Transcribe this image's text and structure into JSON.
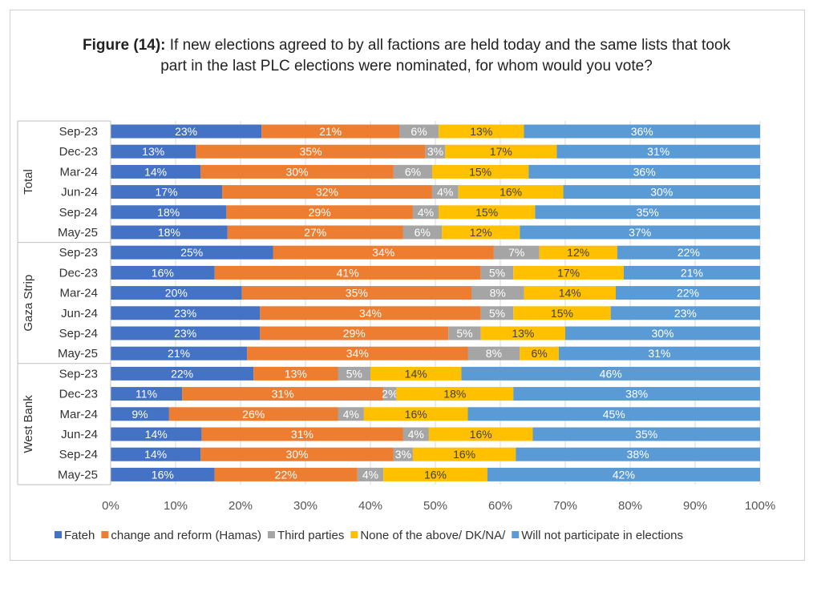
{
  "chart_data": {
    "type": "bar",
    "orientation": "horizontal",
    "stacked": "percent",
    "title_bold": "Figure (14):",
    "title": "If new elections agreed to by all factions are held today and the same lists that took part in the last PLC elections were nominated, for whom would you vote?",
    "xlabel": "",
    "ylabel": "",
    "xlim": [
      0,
      100
    ],
    "xticks": [
      "0%",
      "10%",
      "20%",
      "30%",
      "40%",
      "50%",
      "60%",
      "70%",
      "80%",
      "90%",
      "100%"
    ],
    "grid": true,
    "legend_position": "bottom",
    "series": [
      {
        "name": "Fateh",
        "color": "#4472C4"
      },
      {
        "name": "change and reform (Hamas)",
        "color": "#ED7D31"
      },
      {
        "name": "Third parties",
        "color": "#A5A5A5"
      },
      {
        "name": "None of the above/ DK/NA/",
        "color": "#FFC000"
      },
      {
        "name": "Will not participate in elections",
        "color": "#5B9BD5"
      }
    ],
    "groups": [
      {
        "name": "Total",
        "rows": [
          {
            "label": "Sep-23",
            "values": [
              23,
              21,
              6,
              13,
              36
            ]
          },
          {
            "label": "Dec-23",
            "values": [
              13,
              35,
              3,
              17,
              31
            ]
          },
          {
            "label": "Mar-24",
            "values": [
              14,
              30,
              6,
              15,
              36
            ]
          },
          {
            "label": "Jun-24",
            "values": [
              17,
              32,
              4,
              16,
              30
            ]
          },
          {
            "label": "Sep-24",
            "values": [
              18,
              29,
              4,
              15,
              35
            ]
          },
          {
            "label": "May-25",
            "values": [
              18,
              27,
              6,
              12,
              37
            ]
          }
        ]
      },
      {
        "name": "Gaza Strip",
        "rows": [
          {
            "label": "Sep-23",
            "values": [
              25,
              34,
              7,
              12,
              22
            ]
          },
          {
            "label": "Dec-23",
            "values": [
              16,
              41,
              5,
              17,
              21
            ]
          },
          {
            "label": "Mar-24",
            "values": [
              20,
              35,
              8,
              14,
              22
            ]
          },
          {
            "label": "Jun-24",
            "values": [
              23,
              34,
              5,
              15,
              23
            ]
          },
          {
            "label": "Sep-24",
            "values": [
              23,
              29,
              5,
              13,
              30
            ]
          },
          {
            "label": "May-25",
            "values": [
              21,
              34,
              8,
              6,
              31
            ]
          }
        ]
      },
      {
        "name": "West Bank",
        "rows": [
          {
            "label": "Sep-23",
            "values": [
              22,
              13,
              5,
              14,
              46
            ]
          },
          {
            "label": "Dec-23",
            "values": [
              11,
              31,
              2,
              18,
              38
            ]
          },
          {
            "label": "Mar-24",
            "values": [
              9,
              26,
              4,
              16,
              45
            ]
          },
          {
            "label": "Jun-24",
            "values": [
              14,
              31,
              4,
              16,
              35
            ]
          },
          {
            "label": "Sep-24",
            "values": [
              14,
              30,
              3,
              16,
              38
            ]
          },
          {
            "label": "May-25",
            "values": [
              16,
              22,
              4,
              16,
              42
            ]
          }
        ]
      }
    ]
  }
}
